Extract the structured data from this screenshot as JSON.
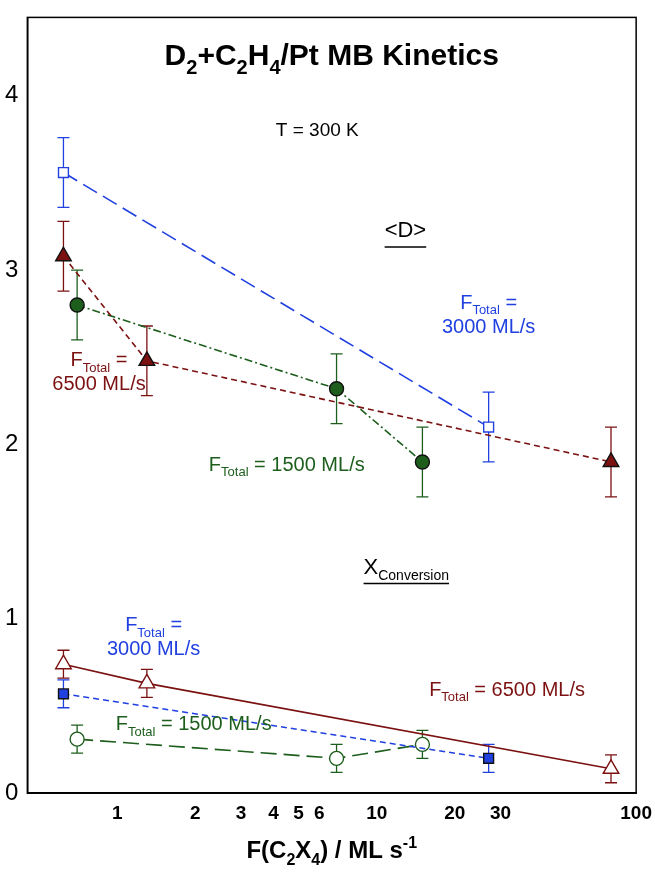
{
  "chart_data": {
    "type": "scatter",
    "title": [
      "D",
      {
        "sub": "2"
      },
      "+C",
      {
        "sub": "2"
      },
      "H",
      {
        "sub": "4"
      },
      "/Pt MB Kinetics"
    ],
    "x_label": [
      "F(C",
      {
        "sub": "2"
      },
      "X",
      {
        "sub": "4"
      },
      ") / ML s",
      {
        "sup": "-1"
      }
    ],
    "log": "x",
    "xlim": [
      0.45,
      100
    ],
    "xticks": [
      1,
      2,
      3,
      4,
      5,
      6,
      10,
      20,
      30,
      100
    ],
    "ylim": [
      0,
      4.45
    ],
    "yticks": [
      0,
      1,
      2,
      3,
      4
    ],
    "grid": false,
    "annotations": [
      {
        "text": [
          "T = 300 K"
        ],
        "at": [
          5.9,
          3.77
        ]
      },
      {
        "text": [
          "<D>"
        ],
        "at": [
          12.9,
          3.19
        ],
        "underline": true
      },
      {
        "text": [
          "X",
          {
            "sub": "Conversion"
          }
        ],
        "at": [
          13,
          1.26
        ],
        "underline": true
      }
    ],
    "series": [
      {
        "name": [
          [
            "F",
            {
              "sub": "Total"
            },
            " ="
          ],
          [
            "3000 ML/s"
          ]
        ],
        "label_at": [
          27,
          2.75
        ],
        "color": "#2040e0",
        "marker": "open square",
        "line_style": "long-dashed",
        "x": [
          0.62,
          27
        ],
        "values": [
          3.56,
          2.1
        ],
        "errors": [
          0.2,
          0.2
        ]
      },
      {
        "name": [
          [
            "F",
            {
              "sub": "Total"
            },
            " ="
          ],
          [
            "6500 ML/s"
          ]
        ],
        "label_at": [
          0.85,
          2.42
        ],
        "color": "#7b1111",
        "marker": "filled triangle",
        "line_style": "dashed",
        "x": [
          0.62,
          1.3,
          80
        ],
        "values": [
          3.08,
          2.48,
          1.9
        ],
        "errors": [
          0.2,
          0.2,
          0.2
        ]
      },
      {
        "name": [
          [
            "F",
            {
              "sub": "Total"
            },
            " = 1500 ML/s"
          ]
        ],
        "label_at": [
          4.5,
          1.89
        ],
        "color": "#1d5e1d",
        "marker": "filled circle",
        "line_style": "dash-dot",
        "x": [
          0.7,
          7,
          15
        ],
        "values": [
          2.8,
          2.32,
          1.9
        ],
        "errors": [
          0.2,
          0.2,
          0.2
        ]
      },
      {
        "name": [
          [
            "F",
            {
              "sub": "Total"
            },
            " = 6500 ML/s"
          ]
        ],
        "label_at": [
          31.8,
          0.6
        ],
        "color": "#7b1111",
        "marker": "open triangle",
        "line_style": "solid",
        "x": [
          0.62,
          1.3,
          80
        ],
        "values": [
          0.74,
          0.63,
          0.14
        ],
        "errors": [
          0.08,
          0.08,
          0.08
        ]
      },
      {
        "name": [
          [
            "F",
            {
              "sub": "Total"
            },
            " ="
          ],
          [
            "3000 ML/s"
          ]
        ],
        "label_at": [
          1.38,
          0.9
        ],
        "color": "#2040e0",
        "marker": "filled square",
        "line_style": "dashed",
        "x": [
          0.62,
          27
        ],
        "values": [
          0.57,
          0.2
        ],
        "errors": [
          0.08,
          0.08
        ]
      },
      {
        "name": [
          [
            "F",
            {
              "sub": "Total"
            },
            " = 1500 ML/s"
          ]
        ],
        "label_at": [
          1.97,
          0.4
        ],
        "color": "#1d5e1d",
        "marker": "open circle",
        "line_style": "long-dashed",
        "x": [
          0.7,
          7,
          15
        ],
        "values": [
          0.31,
          0.2,
          0.28
        ],
        "errors": [
          0.08,
          0.08,
          0.08
        ]
      }
    ]
  }
}
